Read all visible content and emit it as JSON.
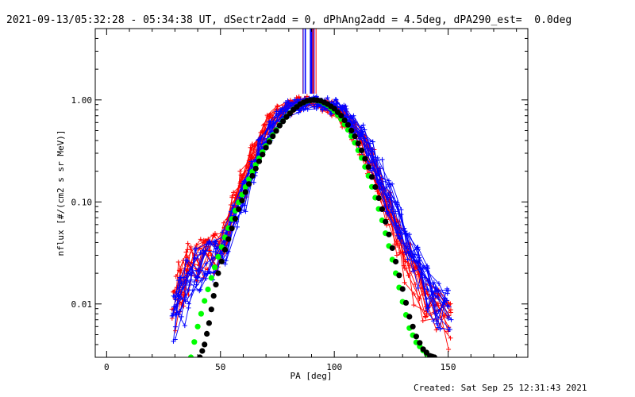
{
  "title": "2021-09-13/05:32:28 - 05:34:38 UT, dSectr2add = 0, dPhAng2add = 4.5deg, dPA290_est=  0.0deg",
  "footer": "Created: Sat Sep 25 12:31:43 2021",
  "colors": {
    "red": "#ff0000",
    "blue": "#0000ff",
    "green": "#00ff00",
    "black": "#000000"
  },
  "chart_data": {
    "type": "line",
    "xlabel": "PA [deg]",
    "ylabel": "nflux [#/(cm2 s sr MeV)]",
    "xlim": [
      -5,
      185
    ],
    "ylim": [
      0.003,
      5.0
    ],
    "yscale": "log",
    "x_ticks": [
      0,
      50,
      100,
      150
    ],
    "x_tick_labels": [
      "0",
      "50",
      "100",
      "150"
    ],
    "y_ticks": [
      0.01,
      0.1,
      1.0
    ],
    "y_tick_labels": [
      "0.01",
      "0.10",
      "1.00"
    ],
    "grid": false,
    "fit_curves": [
      {
        "color": "green",
        "marker": "filled-circle",
        "x": [
          37,
          40,
          43,
          46,
          49,
          52,
          55,
          58,
          61,
          64,
          67,
          70,
          73,
          76,
          79,
          82,
          85,
          88,
          91,
          94,
          97,
          100,
          103,
          106,
          109,
          112,
          115,
          118,
          121,
          124,
          127,
          130,
          133,
          136,
          139,
          142
        ],
        "y": [
          0.003,
          0.006,
          0.0107,
          0.018,
          0.029,
          0.045,
          0.068,
          0.099,
          0.14,
          0.198,
          0.268,
          0.353,
          0.453,
          0.566,
          0.685,
          0.804,
          0.91,
          0.976,
          0.998,
          0.97,
          0.89,
          0.78,
          0.65,
          0.51,
          0.38,
          0.27,
          0.18,
          0.11,
          0.066,
          0.037,
          0.02,
          0.0105,
          0.0058,
          0.0042,
          0.0035,
          0.003
        ]
      },
      {
        "color": "black",
        "marker": "filled-circle",
        "x": [
          41,
          43,
          45,
          47,
          49,
          52,
          55,
          58,
          61,
          64,
          67,
          70,
          73,
          76,
          79,
          82,
          85,
          88,
          91,
          94,
          97,
          100,
          103,
          106,
          109,
          112,
          115,
          118,
          121,
          124,
          127,
          130,
          133,
          136,
          139,
          142,
          144
        ],
        "y": [
          0.003,
          0.004,
          0.0065,
          0.012,
          0.02,
          0.034,
          0.055,
          0.085,
          0.125,
          0.18,
          0.25,
          0.34,
          0.44,
          0.56,
          0.68,
          0.8,
          0.91,
          0.98,
          1.0,
          0.98,
          0.91,
          0.82,
          0.7,
          0.57,
          0.44,
          0.32,
          0.22,
          0.14,
          0.085,
          0.048,
          0.026,
          0.014,
          0.0075,
          0.0048,
          0.0036,
          0.0031,
          0.003
        ]
      }
    ],
    "series": [
      {
        "color": "red",
        "marker": "plus",
        "x": [
          30,
          33,
          36,
          40,
          44,
          48,
          52,
          56,
          60,
          64,
          68,
          72,
          76,
          80,
          84,
          88,
          92,
          96,
          100,
          104,
          108,
          112,
          116,
          120,
          124,
          128,
          132,
          136,
          140,
          145,
          150
        ],
        "y": [
          0.012,
          0.018,
          0.026,
          0.03,
          0.03,
          0.035,
          0.05,
          0.09,
          0.15,
          0.28,
          0.45,
          0.58,
          0.72,
          0.86,
          0.95,
          0.96,
          0.92,
          0.88,
          0.84,
          0.7,
          0.55,
          0.38,
          0.26,
          0.16,
          0.09,
          0.05,
          0.028,
          0.018,
          0.012,
          0.009,
          0.008
        ]
      },
      {
        "color": "blue",
        "marker": "plus",
        "x": [
          30,
          33,
          36,
          40,
          44,
          48,
          52,
          56,
          60,
          64,
          68,
          72,
          76,
          80,
          84,
          88,
          92,
          96,
          100,
          104,
          108,
          112,
          116,
          120,
          124,
          128,
          132,
          136,
          140,
          145,
          150
        ],
        "y": [
          0.008,
          0.012,
          0.018,
          0.024,
          0.028,
          0.03,
          0.04,
          0.07,
          0.12,
          0.2,
          0.35,
          0.5,
          0.68,
          0.82,
          0.9,
          0.93,
          0.95,
          0.92,
          0.86,
          0.73,
          0.6,
          0.45,
          0.3,
          0.2,
          0.12,
          0.07,
          0.04,
          0.025,
          0.016,
          0.011,
          0.009
        ]
      }
    ]
  }
}
